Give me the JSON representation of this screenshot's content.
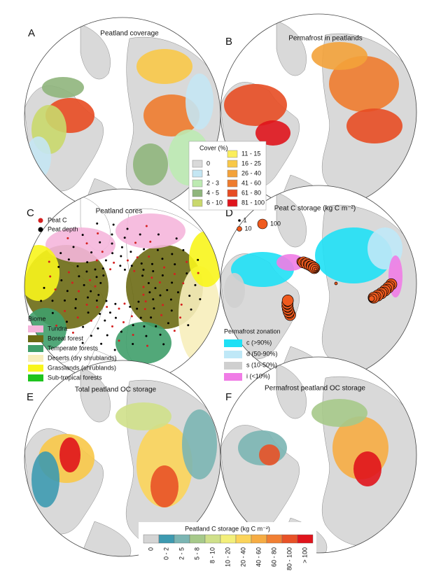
{
  "panels": [
    {
      "letter": "A",
      "title": "Peatland coverage"
    },
    {
      "letter": "B",
      "title": "Permafrost in peatlands"
    },
    {
      "letter": "C",
      "title": "Peatland cores"
    },
    {
      "letter": "D",
      "title": "Peat C storage (kg C m⁻²)"
    },
    {
      "letter": "E",
      "title": "Total peatland OC storage"
    },
    {
      "letter": "F",
      "title": "Permafrost peatland OC storage"
    }
  ],
  "cover_legend": {
    "title": "Cover (%)",
    "items": [
      {
        "label": "0",
        "color": "#d9d9d9"
      },
      {
        "label": "1",
        "color": "#c4e6f3"
      },
      {
        "label": "2 - 3",
        "color": "#bdeab2"
      },
      {
        "label": "4 - 5",
        "color": "#8fb57c"
      },
      {
        "label": "6 - 10",
        "color": "#c9d86c"
      },
      {
        "label": "11 - 15",
        "color": "#fbee5c"
      },
      {
        "label": "16 - 25",
        "color": "#f8c848"
      },
      {
        "label": "26 - 40",
        "color": "#f3a23a"
      },
      {
        "label": "41 - 60",
        "color": "#ee7b2e"
      },
      {
        "label": "61 - 80",
        "color": "#e74c23"
      },
      {
        "label": "81 - 100",
        "color": "#df141c"
      }
    ]
  },
  "cores_legend": [
    {
      "label": "Peat C",
      "color": "#d42020"
    },
    {
      "label": "Peat depth",
      "color": "#000000"
    }
  ],
  "biome_legend": {
    "title": "Biome",
    "items": [
      {
        "label": "Tundra",
        "color": "#f5b6dc"
      },
      {
        "label": "Boreal forest",
        "color": "#6b6a14"
      },
      {
        "label": "Temperate forests",
        "color": "#3f9e6a"
      },
      {
        "label": "Deserts (dry shrublands)",
        "color": "#f7eebb"
      },
      {
        "label": "Grasslands (shrublands)",
        "color": "#f8f51c"
      },
      {
        "label": "Sub-tropical forests",
        "color": "#1ec41e"
      }
    ]
  },
  "size_legend": [
    1,
    10,
    100
  ],
  "permafrost_legend": {
    "title": "Permafrost zonation",
    "items": [
      {
        "label": "c (>90%)",
        "color": "#1fe0f5"
      },
      {
        "label": "d (50-90%)",
        "color": "#bfe8f7"
      },
      {
        "label": "s (10-50%)",
        "color": "#cfcfcf"
      },
      {
        "label": "i (<10%)",
        "color": "#f07ce6"
      }
    ]
  },
  "storage_legend": {
    "title": "Peatland C storage (kg C m⁻²)",
    "items": [
      {
        "label": "0",
        "color": "#d4d4d4"
      },
      {
        "label": "0 - 2",
        "color": "#3d9ab0"
      },
      {
        "label": "2 - 5",
        "color": "#7bb5b3"
      },
      {
        "label": "5 - 8",
        "color": "#a6c98a"
      },
      {
        "label": "8 - 10",
        "color": "#cfe08a"
      },
      {
        "label": "10 - 20",
        "color": "#f3ef7a"
      },
      {
        "label": "20 - 40",
        "color": "#fbd45a"
      },
      {
        "label": "40 - 60",
        "color": "#f6ac43"
      },
      {
        "label": "60 - 80",
        "color": "#f17f33"
      },
      {
        "label": "80 - 100",
        "color": "#e85227"
      },
      {
        "label": "> 100",
        "color": "#e0141c"
      }
    ]
  }
}
